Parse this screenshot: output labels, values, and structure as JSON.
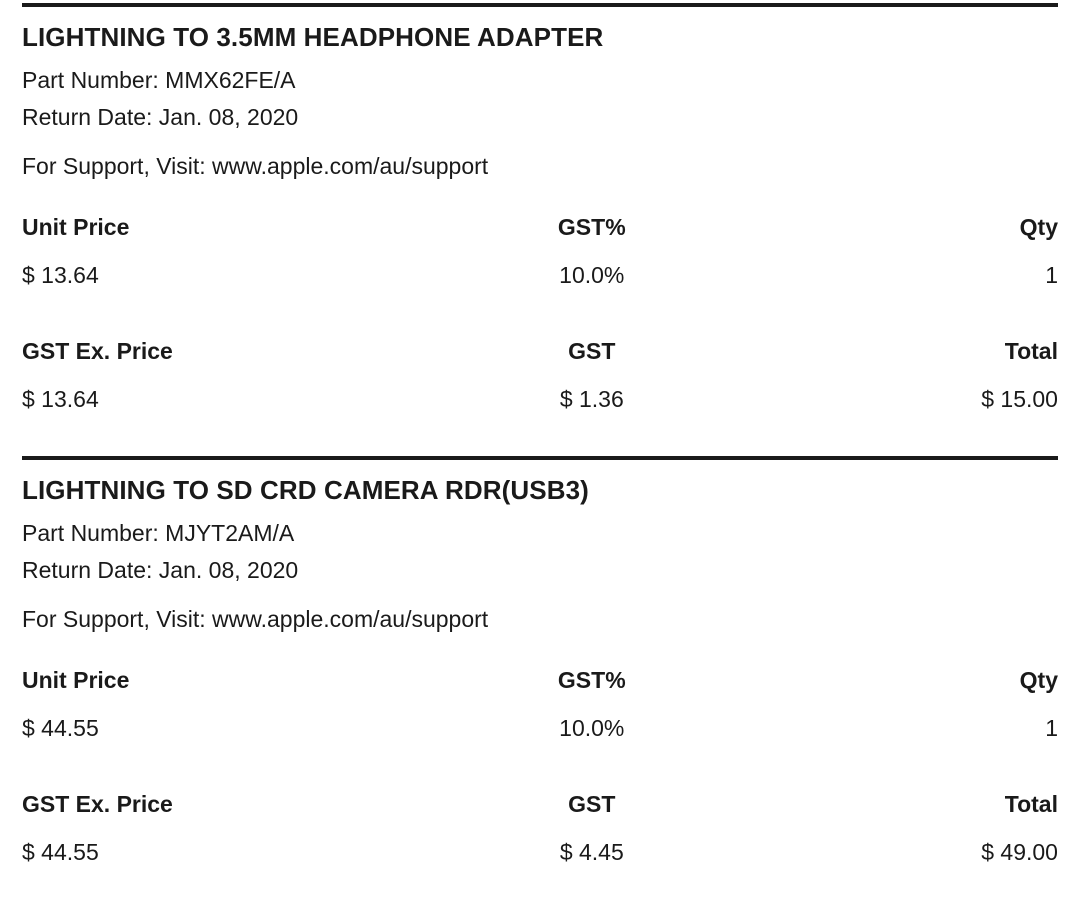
{
  "colors": {
    "text": "#1a1a1a",
    "rule": "#1a1a1a",
    "background": "#ffffff"
  },
  "items": [
    {
      "title": "LIGHTNING TO 3.5MM HEADPHONE ADAPTER",
      "part_number": {
        "label": "Part Number:",
        "value": "MMX62FE/A"
      },
      "return_date": {
        "label": "Return Date:",
        "value": "Jan. 08, 2020"
      },
      "support": {
        "label": "For Support, Visit:",
        "url": "www.apple.com/au/support"
      },
      "unit_table": {
        "headers": [
          "Unit Price",
          "GST%",
          "Qty"
        ],
        "values": [
          "$ 13.64",
          "10.0%",
          "1"
        ]
      },
      "totals_table": {
        "headers": [
          "GST Ex. Price",
          "GST",
          "Total"
        ],
        "values": [
          "$ 13.64",
          "$ 1.36",
          "$ 15.00"
        ]
      }
    },
    {
      "title": "LIGHTNING TO SD CRD CAMERA RDR(USB3)",
      "part_number": {
        "label": "Part Number:",
        "value": "MJYT2AM/A"
      },
      "return_date": {
        "label": "Return Date:",
        "value": "Jan. 08, 2020"
      },
      "support": {
        "label": "For Support, Visit:",
        "url": "www.apple.com/au/support"
      },
      "unit_table": {
        "headers": [
          "Unit Price",
          "GST%",
          "Qty"
        ],
        "values": [
          "$ 44.55",
          "10.0%",
          "1"
        ]
      },
      "totals_table": {
        "headers": [
          "GST Ex. Price",
          "GST",
          "Total"
        ],
        "values": [
          "$ 44.55",
          "$ 4.45",
          "$ 49.00"
        ]
      }
    }
  ]
}
